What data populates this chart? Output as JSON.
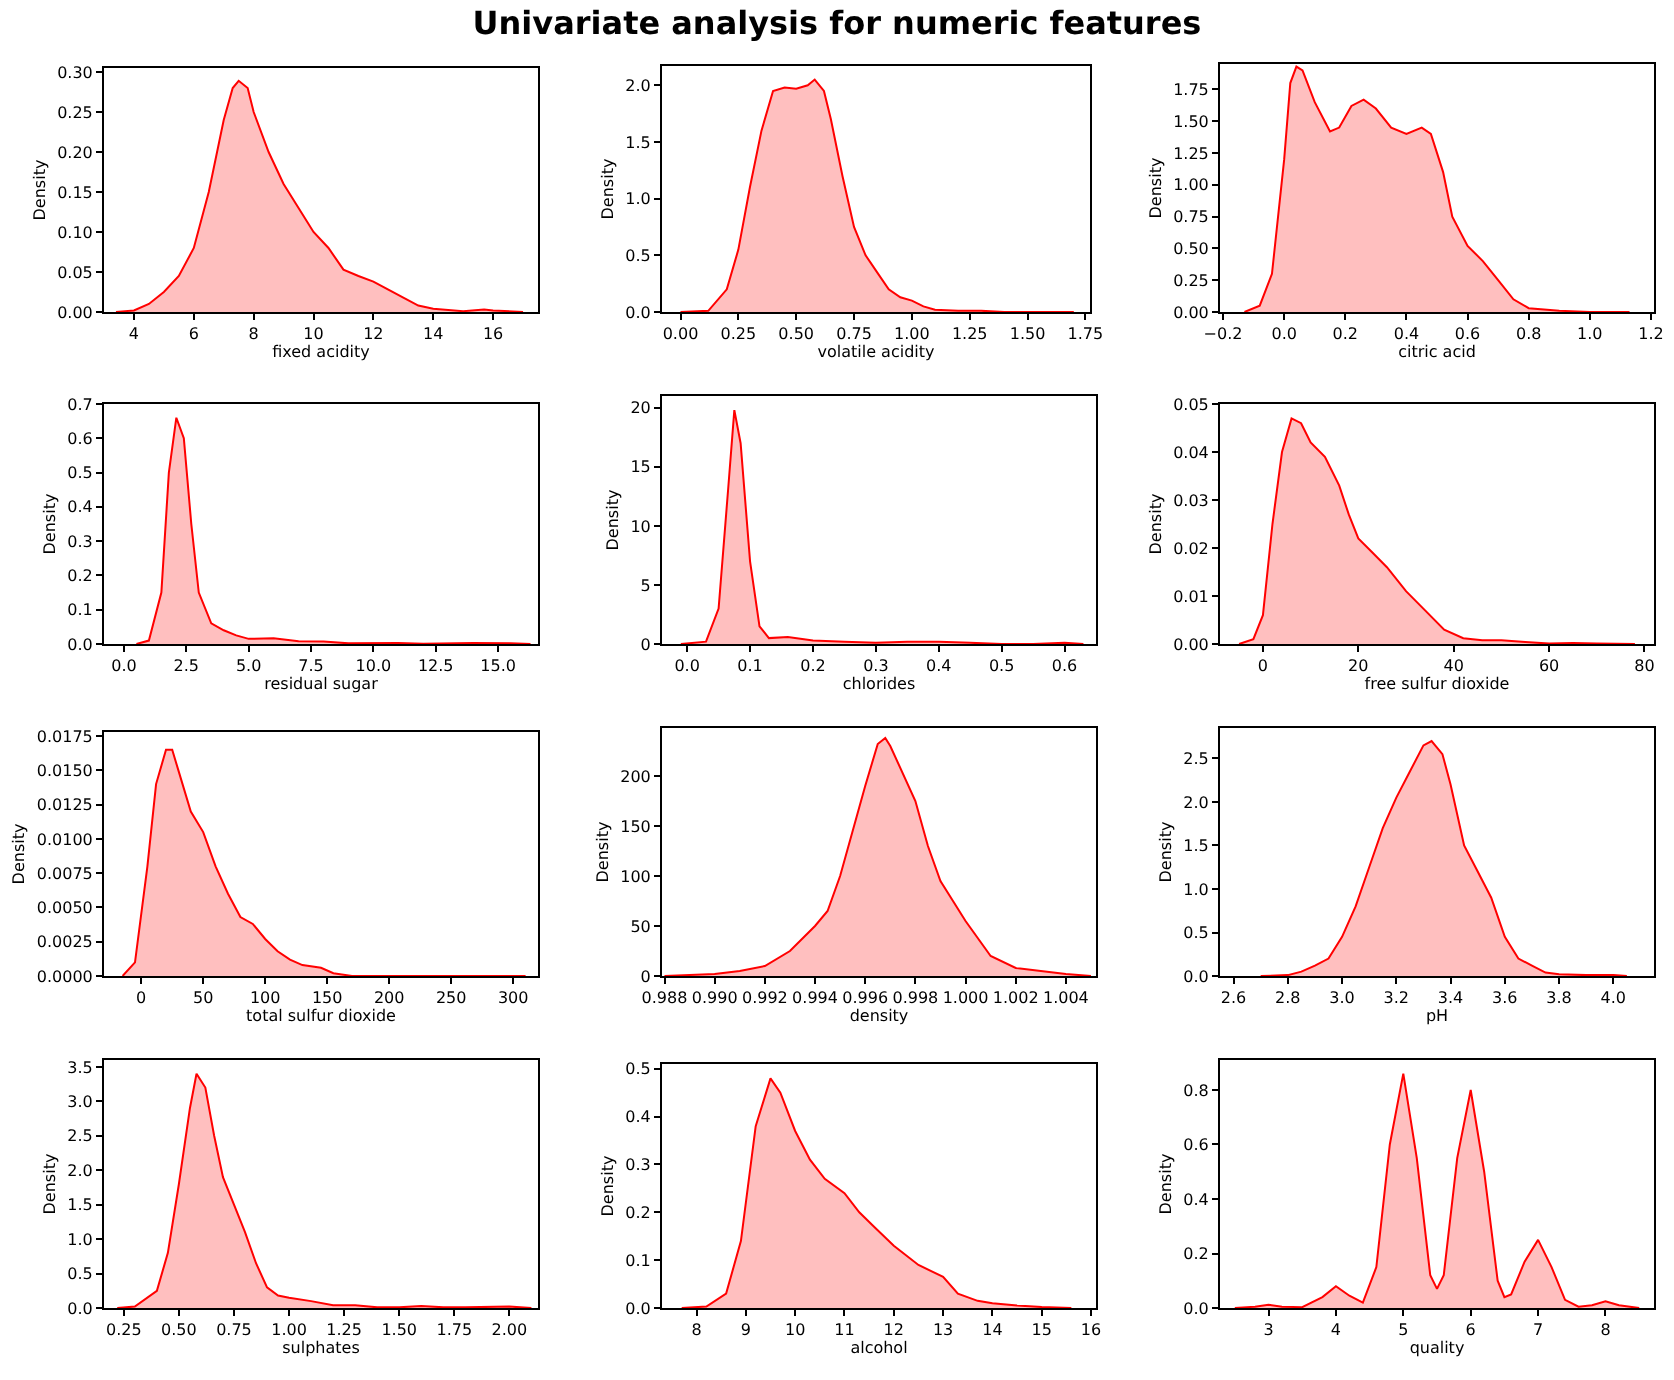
{
  "chart_data": [
    {
      "type": "area",
      "xlabel": "fixed acidity",
      "ylabel": "Density",
      "xlim": [
        3.0,
        17.5
      ],
      "xticks": [
        4,
        6,
        8,
        10,
        12,
        14,
        16
      ],
      "ylim": [
        0,
        0.305
      ],
      "yticks": [
        {
          "value": 0,
          "label": "0.00"
        },
        {
          "value": 0.05,
          "label": "0.05"
        },
        {
          "value": 0.1,
          "label": "0.10"
        },
        {
          "value": 0.15,
          "label": "0.15"
        },
        {
          "value": 0.2,
          "label": "0.20"
        },
        {
          "value": 0.25,
          "label": "0.25"
        },
        {
          "value": 0.3,
          "label": "0.30"
        }
      ],
      "grid": false,
      "x": [
        3.4,
        4,
        4.5,
        5,
        5.5,
        6,
        6.5,
        7,
        7.3,
        7.5,
        7.8,
        8,
        8.5,
        9,
        9.5,
        10,
        10.5,
        11,
        11.5,
        12,
        12.5,
        13,
        13.5,
        14,
        15,
        15.7,
        16,
        17
      ],
      "series": [
        {
          "color": "#ff0000",
          "values": [
            0,
            0.002,
            0.01,
            0.025,
            0.045,
            0.08,
            0.15,
            0.24,
            0.28,
            0.289,
            0.28,
            0.25,
            0.2,
            0.16,
            0.13,
            0.1,
            0.08,
            0.053,
            0.045,
            0.038,
            0.028,
            0.018,
            0.008,
            0.004,
            0.001,
            0.003,
            0.002,
            0
          ]
        }
      ]
    },
    {
      "type": "area",
      "title": "Univariate analysis for numeric features",
      "xlabel": "volatile acidity",
      "ylabel": "Density",
      "xlim": [
        -0.08,
        1.77
      ],
      "xticks": [
        {
          "value": 0,
          "label": "0.00"
        },
        {
          "value": 0.25,
          "label": "0.25"
        },
        {
          "value": 0.5,
          "label": "0.50"
        },
        {
          "value": 0.75,
          "label": "0.75"
        },
        {
          "value": 1,
          "label": "1.00"
        },
        {
          "value": 1.25,
          "label": "1.25"
        },
        {
          "value": 1.5,
          "label": "1.50"
        },
        {
          "value": 1.75,
          "label": "1.75"
        }
      ],
      "ylim": [
        0,
        2.17
      ],
      "yticks": [
        {
          "value": 0,
          "label": "0.0"
        },
        {
          "value": 0.5,
          "label": "0.5"
        },
        {
          "value": 1,
          "label": "1.0"
        },
        {
          "value": 1.5,
          "label": "1.5"
        },
        {
          "value": 2,
          "label": "2.0"
        }
      ],
      "grid": false,
      "x": [
        0,
        0.12,
        0.2,
        0.25,
        0.3,
        0.35,
        0.4,
        0.45,
        0.5,
        0.55,
        0.58,
        0.62,
        0.65,
        0.7,
        0.75,
        0.8,
        0.85,
        0.9,
        0.95,
        1.0,
        1.05,
        1.1,
        1.2,
        1.3,
        1.4,
        1.6,
        1.7
      ],
      "series": [
        {
          "color": "#ff0000",
          "values": [
            0,
            0.01,
            0.2,
            0.55,
            1.1,
            1.6,
            1.95,
            1.98,
            1.97,
            2.0,
            2.05,
            1.95,
            1.7,
            1.2,
            0.75,
            0.5,
            0.35,
            0.2,
            0.13,
            0.1,
            0.05,
            0.02,
            0.01,
            0.01,
            0,
            0,
            0
          ]
        }
      ]
    },
    {
      "type": "area",
      "xlabel": "citric acid",
      "ylabel": "Density",
      "xlim": [
        -0.21,
        1.21
      ],
      "xticks": [
        {
          "value": -0.2,
          "label": "−0.2"
        },
        {
          "value": 0,
          "label": "0.0"
        },
        {
          "value": 0.2,
          "label": "0.2"
        },
        {
          "value": 0.4,
          "label": "0.4"
        },
        {
          "value": 0.6,
          "label": "0.6"
        },
        {
          "value": 0.8,
          "label": "0.8"
        },
        {
          "value": 1,
          "label": "1.0"
        },
        {
          "value": 1.2,
          "label": "1.2"
        }
      ],
      "ylim": [
        0,
        1.95
      ],
      "yticks": [
        {
          "value": 0,
          "label": "0.00"
        },
        {
          "value": 0.25,
          "label": "0.25"
        },
        {
          "value": 0.5,
          "label": "0.50"
        },
        {
          "value": 0.75,
          "label": "0.75"
        },
        {
          "value": 1,
          "label": "1.00"
        },
        {
          "value": 1.25,
          "label": "1.25"
        },
        {
          "value": 1.5,
          "label": "1.50"
        },
        {
          "value": 1.75,
          "label": "1.75"
        }
      ],
      "grid": false,
      "x": [
        -0.13,
        -0.08,
        -0.04,
        0,
        0.02,
        0.04,
        0.06,
        0.1,
        0.15,
        0.18,
        0.22,
        0.26,
        0.3,
        0.35,
        0.4,
        0.45,
        0.48,
        0.52,
        0.55,
        0.6,
        0.65,
        0.7,
        0.75,
        0.8,
        0.9,
        1.0,
        1.13
      ],
      "series": [
        {
          "color": "#ff0000",
          "values": [
            0,
            0.05,
            0.3,
            1.2,
            1.8,
            1.93,
            1.9,
            1.65,
            1.42,
            1.45,
            1.62,
            1.67,
            1.6,
            1.45,
            1.4,
            1.45,
            1.4,
            1.1,
            0.75,
            0.52,
            0.4,
            0.25,
            0.1,
            0.03,
            0.01,
            0,
            0
          ]
        }
      ]
    },
    {
      "type": "area",
      "xlabel": "residual sugar",
      "ylabel": "Density",
      "xlim": [
        -0.8,
        16.6
      ],
      "xticks": [
        {
          "value": 0,
          "label": "0.0"
        },
        {
          "value": 2.5,
          "label": "2.5"
        },
        {
          "value": 5,
          "label": "5.0"
        },
        {
          "value": 7.5,
          "label": "7.5"
        },
        {
          "value": 10,
          "label": "10.0"
        },
        {
          "value": 12.5,
          "label": "12.5"
        },
        {
          "value": 15,
          "label": "15.0"
        }
      ],
      "ylim": [
        0,
        0.7
      ],
      "yticks": [
        {
          "value": 0,
          "label": "0.0"
        },
        {
          "value": 0.1,
          "label": "0.1"
        },
        {
          "value": 0.2,
          "label": "0.2"
        },
        {
          "value": 0.3,
          "label": "0.3"
        },
        {
          "value": 0.4,
          "label": "0.4"
        },
        {
          "value": 0.5,
          "label": "0.5"
        },
        {
          "value": 0.6,
          "label": "0.6"
        },
        {
          "value": 0.7,
          "label": "0.7"
        }
      ],
      "grid": false,
      "x": [
        0.5,
        1,
        1.5,
        1.8,
        2.1,
        2.4,
        2.7,
        3,
        3.5,
        4,
        4.5,
        5,
        6,
        7,
        8,
        9,
        11,
        12,
        14,
        15.5,
        16.3
      ],
      "series": [
        {
          "color": "#ff0000",
          "values": [
            0,
            0.01,
            0.15,
            0.5,
            0.66,
            0.6,
            0.35,
            0.15,
            0.06,
            0.04,
            0.025,
            0.015,
            0.017,
            0.008,
            0.007,
            0.002,
            0.003,
            0.001,
            0.003,
            0.002,
            0
          ]
        }
      ]
    },
    {
      "type": "area",
      "xlabel": "chlorides",
      "ylabel": "Density",
      "xlim": [
        -0.04,
        0.65
      ],
      "xticks": [
        {
          "value": 0,
          "label": "0.0"
        },
        {
          "value": 0.1,
          "label": "0.1"
        },
        {
          "value": 0.2,
          "label": "0.2"
        },
        {
          "value": 0.3,
          "label": "0.3"
        },
        {
          "value": 0.4,
          "label": "0.4"
        },
        {
          "value": 0.5,
          "label": "0.5"
        },
        {
          "value": 0.6,
          "label": "0.6"
        }
      ],
      "ylim": [
        0,
        21
      ],
      "yticks": [
        0,
        5,
        10,
        15,
        20
      ],
      "grid": false,
      "x": [
        -0.01,
        0.03,
        0.05,
        0.065,
        0.075,
        0.085,
        0.1,
        0.115,
        0.13,
        0.16,
        0.2,
        0.25,
        0.3,
        0.35,
        0.4,
        0.45,
        0.5,
        0.55,
        0.6,
        0.63
      ],
      "series": [
        {
          "color": "#ff0000",
          "values": [
            0,
            0.2,
            3,
            13,
            19.8,
            17,
            7,
            1.5,
            0.5,
            0.6,
            0.3,
            0.2,
            0.1,
            0.2,
            0.2,
            0.1,
            0,
            0,
            0.1,
            0
          ]
        }
      ]
    },
    {
      "type": "area",
      "xlabel": "free sulfur dioxide",
      "ylabel": "Density",
      "xlim": [
        -9,
        82
      ],
      "xticks": [
        0,
        20,
        40,
        60,
        80
      ],
      "ylim": [
        0,
        0.05
      ],
      "yticks": [
        {
          "value": 0,
          "label": "0.00"
        },
        {
          "value": 0.01,
          "label": "0.01"
        },
        {
          "value": 0.02,
          "label": "0.02"
        },
        {
          "value": 0.03,
          "label": "0.03"
        },
        {
          "value": 0.04,
          "label": "0.04"
        },
        {
          "value": 0.05,
          "label": "0.05"
        }
      ],
      "grid": false,
      "x": [
        -5,
        -2,
        0,
        2,
        4,
        6,
        8,
        10,
        13,
        16,
        18,
        20,
        23,
        26,
        30,
        34,
        38,
        42,
        46,
        50,
        55,
        60,
        65,
        70,
        78
      ],
      "series": [
        {
          "color": "#ff0000",
          "values": [
            0,
            0.001,
            0.006,
            0.025,
            0.04,
            0.047,
            0.046,
            0.042,
            0.039,
            0.033,
            0.027,
            0.022,
            0.019,
            0.016,
            0.011,
            0.007,
            0.003,
            0.0012,
            0.0008,
            0.0008,
            0.0004,
            0.0001,
            0.0002,
            0.0001,
            0
          ]
        }
      ]
    },
    {
      "type": "area",
      "xlabel": "total sulfur dioxide",
      "ylabel": "Density",
      "xlim": [
        -30,
        320
      ],
      "xticks": [
        0,
        50,
        100,
        150,
        200,
        250,
        300
      ],
      "ylim": [
        0,
        0.0178
      ],
      "yticks": [
        {
          "value": 0,
          "label": "0.0000"
        },
        {
          "value": 0.0025,
          "label": "0.0025"
        },
        {
          "value": 0.005,
          "label": "0.0050"
        },
        {
          "value": 0.0075,
          "label": "0.0075"
        },
        {
          "value": 0.01,
          "label": "0.0100"
        },
        {
          "value": 0.0125,
          "label": "0.0125"
        },
        {
          "value": 0.015,
          "label": "0.0150"
        },
        {
          "value": 0.0175,
          "label": "0.0175"
        }
      ],
      "grid": false,
      "x": [
        -15,
        -5,
        5,
        12,
        20,
        25,
        30,
        40,
        50,
        60,
        70,
        80,
        90,
        100,
        110,
        120,
        130,
        145,
        155,
        170,
        200,
        250,
        290,
        310
      ],
      "series": [
        {
          "color": "#ff0000",
          "values": [
            0,
            0.001,
            0.008,
            0.014,
            0.0165,
            0.0165,
            0.015,
            0.012,
            0.0105,
            0.008,
            0.006,
            0.0043,
            0.0038,
            0.0027,
            0.0018,
            0.0012,
            0.0008,
            0.0006,
            0.0002,
            0,
            0,
            0,
            0,
            0
          ]
        }
      ]
    },
    {
      "type": "area",
      "xlabel": "density",
      "ylabel": "Density",
      "xlim": [
        0.9879,
        1.0052
      ],
      "xticks": [
        {
          "value": 0.988,
          "label": "0.988"
        },
        {
          "value": 0.99,
          "label": "0.990"
        },
        {
          "value": 0.992,
          "label": "0.992"
        },
        {
          "value": 0.994,
          "label": "0.994"
        },
        {
          "value": 0.996,
          "label": "0.996"
        },
        {
          "value": 0.998,
          "label": "0.998"
        },
        {
          "value": 1,
          "label": "1.000"
        },
        {
          "value": 1.002,
          "label": "1.002"
        },
        {
          "value": 1.004,
          "label": "1.004"
        }
      ],
      "ylim": [
        0,
        248
      ],
      "yticks": [
        0,
        50,
        100,
        150,
        200
      ],
      "grid": false,
      "x": [
        0.988,
        0.99,
        0.991,
        0.992,
        0.993,
        0.994,
        0.9945,
        0.995,
        0.996,
        0.9965,
        0.9968,
        0.997,
        0.998,
        0.9985,
        0.999,
        0.9995,
        1.0,
        1.001,
        1.002,
        1.003,
        1.004,
        1.005
      ],
      "series": [
        {
          "color": "#ff0000",
          "values": [
            0,
            2,
            5,
            10,
            25,
            50,
            65,
            100,
            190,
            232,
            238,
            230,
            175,
            130,
            95,
            75,
            55,
            20,
            8,
            5,
            2,
            0
          ]
        }
      ]
    },
    {
      "type": "area",
      "xlabel": "pH",
      "ylabel": "Density",
      "xlim": [
        2.55,
        4.15
      ],
      "xticks": [
        {
          "value": 2.6,
          "label": "2.6"
        },
        {
          "value": 2.8,
          "label": "2.8"
        },
        {
          "value": 3,
          "label": "3.0"
        },
        {
          "value": 3.2,
          "label": "3.2"
        },
        {
          "value": 3.4,
          "label": "3.4"
        },
        {
          "value": 3.6,
          "label": "3.6"
        },
        {
          "value": 3.8,
          "label": "3.8"
        },
        {
          "value": 4,
          "label": "4.0"
        }
      ],
      "ylim": [
        0,
        2.85
      ],
      "yticks": [
        {
          "value": 0,
          "label": "0.0"
        },
        {
          "value": 0.5,
          "label": "0.5"
        },
        {
          "value": 1,
          "label": "1.0"
        },
        {
          "value": 1.5,
          "label": "1.5"
        },
        {
          "value": 2,
          "label": "2.0"
        },
        {
          "value": 2.5,
          "label": "2.5"
        }
      ],
      "grid": false,
      "x": [
        2.7,
        2.8,
        2.85,
        2.9,
        2.95,
        3.0,
        3.05,
        3.1,
        3.15,
        3.2,
        3.25,
        3.3,
        3.33,
        3.37,
        3.4,
        3.45,
        3.5,
        3.55,
        3.6,
        3.65,
        3.7,
        3.75,
        3.8,
        3.9,
        4.0,
        4.05
      ],
      "series": [
        {
          "color": "#ff0000",
          "values": [
            0,
            0.01,
            0.05,
            0.12,
            0.2,
            0.45,
            0.8,
            1.25,
            1.7,
            2.05,
            2.35,
            2.65,
            2.7,
            2.55,
            2.2,
            1.5,
            1.2,
            0.9,
            0.45,
            0.2,
            0.12,
            0.04,
            0.02,
            0.01,
            0.01,
            0
          ]
        }
      ]
    },
    {
      "type": "area",
      "xlabel": "sulphates",
      "ylabel": "Density",
      "xlim": [
        0.16,
        2.13
      ],
      "xticks": [
        {
          "value": 0.25,
          "label": "0.25"
        },
        {
          "value": 0.5,
          "label": "0.50"
        },
        {
          "value": 0.75,
          "label": "0.75"
        },
        {
          "value": 1,
          "label": "1.00"
        },
        {
          "value": 1.25,
          "label": "1.25"
        },
        {
          "value": 1.5,
          "label": "1.50"
        },
        {
          "value": 1.75,
          "label": "1.75"
        },
        {
          "value": 2,
          "label": "2.00"
        }
      ],
      "ylim": [
        0,
        3.6
      ],
      "yticks": [
        {
          "value": 0,
          "label": "0.0"
        },
        {
          "value": 0.5,
          "label": "0.5"
        },
        {
          "value": 1,
          "label": "1.0"
        },
        {
          "value": 1.5,
          "label": "1.5"
        },
        {
          "value": 2,
          "label": "2.0"
        },
        {
          "value": 2.5,
          "label": "2.5"
        },
        {
          "value": 3,
          "label": "3.0"
        },
        {
          "value": 3.5,
          "label": "3.5"
        }
      ],
      "grid": false,
      "x": [
        0.22,
        0.3,
        0.4,
        0.45,
        0.5,
        0.55,
        0.58,
        0.62,
        0.66,
        0.7,
        0.75,
        0.8,
        0.85,
        0.9,
        0.95,
        1.0,
        1.1,
        1.2,
        1.3,
        1.4,
        1.5,
        1.6,
        1.7,
        1.8,
        2.0,
        2.1
      ],
      "series": [
        {
          "color": "#ff0000",
          "values": [
            0,
            0.02,
            0.25,
            0.8,
            1.8,
            2.9,
            3.4,
            3.2,
            2.5,
            1.9,
            1.5,
            1.1,
            0.65,
            0.3,
            0.18,
            0.15,
            0.1,
            0.04,
            0.04,
            0.01,
            0.01,
            0.03,
            0.01,
            0.01,
            0.02,
            0
          ]
        }
      ]
    },
    {
      "type": "area",
      "xlabel": "alcohol",
      "ylabel": "Density",
      "xlim": [
        7.3,
        16.1
      ],
      "xticks": [
        8,
        9,
        10,
        11,
        12,
        13,
        14,
        15,
        16
      ],
      "ylim": [
        0,
        0.51
      ],
      "yticks": [
        {
          "value": 0,
          "label": "0.0"
        },
        {
          "value": 0.1,
          "label": "0.1"
        },
        {
          "value": 0.2,
          "label": "0.2"
        },
        {
          "value": 0.3,
          "label": "0.3"
        },
        {
          "value": 0.4,
          "label": "0.4"
        },
        {
          "value": 0.5,
          "label": "0.5"
        }
      ],
      "grid": false,
      "x": [
        7.7,
        8.2,
        8.6,
        8.9,
        9.2,
        9.5,
        9.7,
        10,
        10.3,
        10.6,
        11,
        11.3,
        11.6,
        12,
        12.5,
        13,
        13.3,
        13.7,
        14,
        14.5,
        15,
        15.6
      ],
      "series": [
        {
          "color": "#ff0000",
          "values": [
            0,
            0.003,
            0.03,
            0.14,
            0.38,
            0.48,
            0.45,
            0.37,
            0.31,
            0.27,
            0.24,
            0.2,
            0.17,
            0.13,
            0.09,
            0.065,
            0.03,
            0.015,
            0.01,
            0.005,
            0.002,
            0
          ]
        }
      ]
    },
    {
      "type": "area",
      "xlabel": "quality",
      "ylabel": "Density",
      "xlim": [
        2.28,
        8.72
      ],
      "xticks": [
        3,
        4,
        5,
        6,
        7,
        8
      ],
      "ylim": [
        0,
        0.91
      ],
      "yticks": [
        {
          "value": 0,
          "label": "0.0"
        },
        {
          "value": 0.2,
          "label": "0.2"
        },
        {
          "value": 0.4,
          "label": "0.4"
        },
        {
          "value": 0.6,
          "label": "0.6"
        },
        {
          "value": 0.8,
          "label": "0.8"
        }
      ],
      "grid": false,
      "x": [
        2.5,
        2.8,
        3.0,
        3.2,
        3.5,
        3.8,
        4.0,
        4.2,
        4.4,
        4.6,
        4.8,
        5.0,
        5.2,
        5.4,
        5.5,
        5.6,
        5.8,
        6.0,
        6.2,
        6.4,
        6.5,
        6.6,
        6.8,
        7.0,
        7.2,
        7.4,
        7.6,
        7.8,
        8.0,
        8.2,
        8.5
      ],
      "series": [
        {
          "color": "#ff0000",
          "values": [
            0,
            0.005,
            0.012,
            0.005,
            0.003,
            0.04,
            0.08,
            0.045,
            0.02,
            0.15,
            0.6,
            0.86,
            0.55,
            0.12,
            0.07,
            0.12,
            0.55,
            0.8,
            0.5,
            0.1,
            0.04,
            0.05,
            0.17,
            0.25,
            0.15,
            0.03,
            0.005,
            0.01,
            0.025,
            0.01,
            0
          ]
        }
      ]
    }
  ]
}
